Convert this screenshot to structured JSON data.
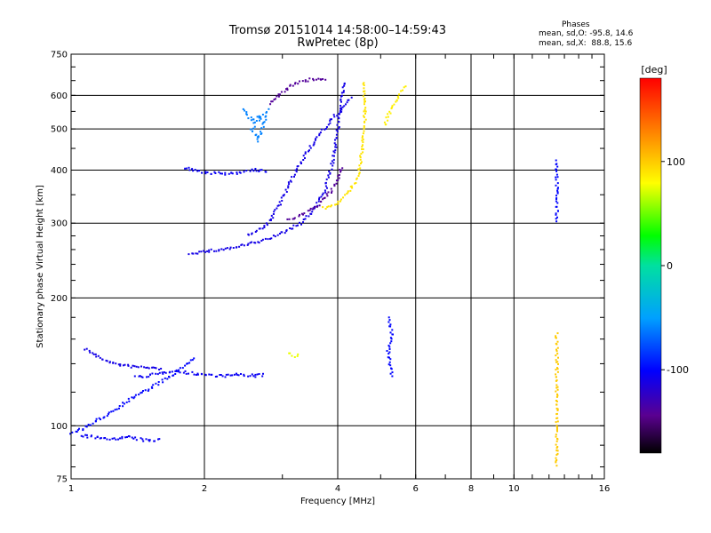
{
  "header": {
    "line1": "Tromsø 20151014 14:58:00–14:59:43",
    "line2": "RwPretec (8p)"
  },
  "phase_box": {
    "title": "Phases",
    "o_line": "mean, sd,O: -95.8, 14.6",
    "x_line": "mean, sd,X:  88.8, 15.6"
  },
  "colorbar": {
    "label": "[deg]",
    "ticks": [
      {
        "value": 100,
        "label": "100"
      },
      {
        "value": 0,
        "label": "0"
      },
      {
        "value": -100,
        "label": "-100"
      }
    ],
    "range": [
      -180,
      180
    ]
  },
  "chart_data": {
    "type": "scatter",
    "xlabel": "Frequency [MHz]",
    "ylabel": "Stationary phase Virtual Height [km]",
    "xscale": "log",
    "yscale": "log",
    "xlim": [
      1,
      16
    ],
    "ylim": [
      75,
      750
    ],
    "xticks": [
      {
        "value": 1,
        "label": "1"
      },
      {
        "value": 2,
        "label": "2"
      },
      {
        "value": 4,
        "label": "4"
      },
      {
        "value": 6,
        "label": "6"
      },
      {
        "value": 8,
        "label": "8"
      },
      {
        "value": 10,
        "label": "10"
      },
      {
        "value": 16,
        "label": "16"
      }
    ],
    "yticks": [
      {
        "value": 75,
        "label": "75"
      },
      {
        "value": 100,
        "label": "100"
      },
      {
        "value": 200,
        "label": "200"
      },
      {
        "value": 300,
        "label": "300"
      },
      {
        "value": 400,
        "label": "400"
      },
      {
        "value": 500,
        "label": "500"
      },
      {
        "value": 600,
        "label": "600"
      },
      {
        "value": 750,
        "label": "750"
      }
    ],
    "grid": true,
    "traces": [
      {
        "points": [
          [
            1.08,
            152
          ],
          [
            1.15,
            145
          ],
          [
            1.25,
            140
          ],
          [
            1.35,
            138
          ],
          [
            1.5,
            137
          ],
          [
            1.62,
            136
          ]
        ],
        "phase": -110
      },
      {
        "points": [
          [
            1.4,
            130
          ],
          [
            1.55,
            132
          ],
          [
            1.7,
            135
          ],
          [
            1.85,
            133
          ],
          [
            2.0,
            132
          ],
          [
            2.2,
            131
          ],
          [
            2.4,
            132
          ],
          [
            2.6,
            131
          ],
          [
            2.75,
            132
          ]
        ],
        "phase": -105
      },
      {
        "points": [
          [
            1.0,
            96
          ],
          [
            1.1,
            100
          ],
          [
            1.2,
            106
          ],
          [
            1.3,
            112
          ],
          [
            1.4,
            118
          ],
          [
            1.5,
            122
          ],
          [
            1.6,
            127
          ],
          [
            1.7,
            132
          ],
          [
            1.8,
            138
          ],
          [
            1.9,
            145
          ]
        ],
        "phase": -100
      },
      {
        "points": [
          [
            1.05,
            95
          ],
          [
            1.2,
            93
          ],
          [
            1.35,
            94
          ],
          [
            1.5,
            92
          ],
          [
            1.6,
            93
          ]
        ],
        "phase": -105
      },
      {
        "points": [
          [
            1.85,
            255
          ],
          [
            2.0,
            257
          ],
          [
            2.3,
            262
          ],
          [
            2.7,
            272
          ],
          [
            3.0,
            285
          ],
          [
            3.3,
            300
          ],
          [
            3.55,
            325
          ],
          [
            3.75,
            360
          ],
          [
            3.9,
            420
          ],
          [
            4.0,
            500
          ],
          [
            4.1,
            600
          ],
          [
            4.15,
            650
          ]
        ],
        "phase": -110
      },
      {
        "points": [
          [
            2.5,
            282
          ],
          [
            2.75,
            295
          ],
          [
            2.95,
            330
          ],
          [
            3.15,
            380
          ],
          [
            3.4,
            440
          ],
          [
            3.7,
            495
          ],
          [
            4.0,
            545
          ],
          [
            4.3,
            595
          ]
        ],
        "phase": -110
      },
      {
        "points": [
          [
            3.1,
            305
          ],
          [
            3.35,
            315
          ],
          [
            3.6,
            330
          ],
          [
            3.85,
            355
          ],
          [
            4.0,
            380
          ],
          [
            4.1,
            410
          ]
        ],
        "phase": -140
      },
      {
        "points": [
          [
            2.8,
            575
          ],
          [
            3.0,
            610
          ],
          [
            3.2,
            640
          ],
          [
            3.5,
            655
          ],
          [
            3.8,
            655
          ]
        ],
        "phase": -140
      },
      {
        "points": [
          [
            3.7,
            325
          ],
          [
            4.0,
            335
          ],
          [
            4.25,
            355
          ],
          [
            4.45,
            390
          ],
          [
            4.55,
            450
          ],
          [
            4.6,
            520
          ],
          [
            4.6,
            600
          ],
          [
            4.55,
            650
          ]
        ],
        "phase": 90
      },
      {
        "points": [
          [
            5.1,
            510
          ],
          [
            5.3,
            560
          ],
          [
            5.5,
            600
          ],
          [
            5.7,
            635
          ]
        ],
        "phase": 85
      },
      {
        "points": [
          [
            1.8,
            405
          ],
          [
            2.0,
            395
          ],
          [
            2.2,
            392
          ],
          [
            2.4,
            395
          ],
          [
            2.6,
            400
          ],
          [
            2.8,
            398
          ]
        ],
        "phase": -105
      },
      {
        "points": [
          [
            2.45,
            555
          ],
          [
            2.55,
            525
          ],
          [
            2.7,
            540
          ],
          [
            2.55,
            500
          ],
          [
            2.65,
            470
          ],
          [
            2.8,
            560
          ]
        ],
        "phase": -60
      },
      {
        "points": [
          [
            3.1,
            148
          ],
          [
            3.2,
            146
          ],
          [
            3.3,
            147
          ]
        ],
        "phase": 75
      },
      {
        "points": [
          [
            12.5,
            420
          ],
          [
            12.5,
            400
          ],
          [
            12.5,
            370
          ],
          [
            12.5,
            340
          ],
          [
            12.5,
            300
          ]
        ],
        "phase": -100
      },
      {
        "points": [
          [
            12.5,
            165
          ],
          [
            12.5,
            150
          ],
          [
            12.5,
            135
          ],
          [
            12.5,
            120
          ],
          [
            12.5,
            105
          ],
          [
            12.5,
            80
          ]
        ],
        "phase": 100
      },
      {
        "points": [
          [
            5.2,
            180
          ],
          [
            5.3,
            165
          ],
          [
            5.2,
            150
          ],
          [
            5.3,
            130
          ]
        ],
        "phase": -100
      }
    ]
  }
}
